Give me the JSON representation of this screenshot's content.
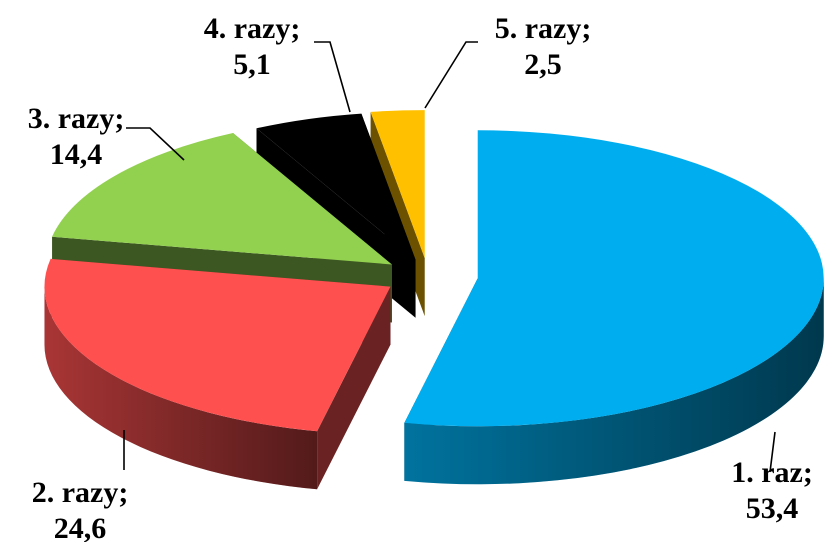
{
  "chart_data": {
    "type": "pie",
    "title": "",
    "three_d": true,
    "exploded": true,
    "legend": "none",
    "categories": [
      "1. raz",
      "2. razy",
      "3. razy",
      "4. razy",
      "5. razy"
    ],
    "values": [
      53.4,
      24.6,
      14.4,
      5.1,
      2.5
    ],
    "value_labels": [
      "53,4",
      "24,6",
      "14,4",
      "5,1",
      "2,5"
    ],
    "label_names": [
      "1. raz;",
      "2. razy;",
      "3. razy;",
      "4. razy;",
      "5. razy;"
    ],
    "colors": [
      "#00AEEF",
      "#FF5050",
      "#92D050",
      "#000000",
      "#FFC000"
    ]
  }
}
